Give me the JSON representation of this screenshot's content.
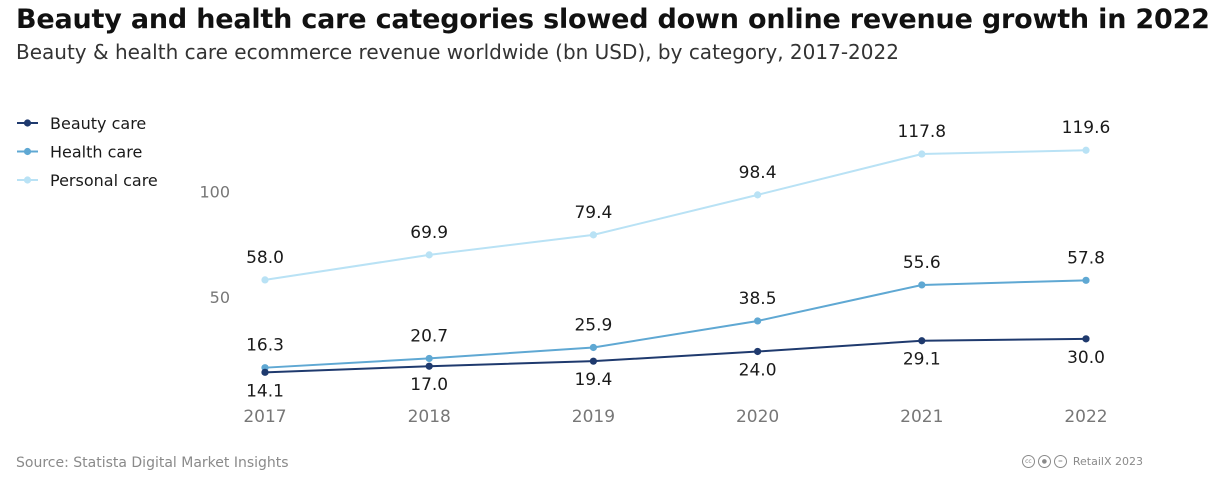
{
  "chart_data": {
    "type": "line",
    "title": "Beauty and health care categories slowed down online revenue growth in 2022",
    "subtitle": "Beauty & health care ecommerce revenue worldwide (bn USD), by category, 2017-2022",
    "x": [
      "2017",
      "2018",
      "2019",
      "2020",
      "2021",
      "2022"
    ],
    "series": [
      {
        "name": "Beauty care",
        "color": "#1f3a6e",
        "values": [
          14.1,
          17.0,
          19.4,
          24.0,
          29.1,
          30.0
        ],
        "labels": [
          "14.1",
          "17.0",
          "19.4",
          "24.0",
          "29.1",
          "30.0"
        ],
        "label_position": "below"
      },
      {
        "name": "Health care",
        "color": "#5fa8d3",
        "values": [
          16.3,
          20.7,
          25.9,
          38.5,
          55.6,
          57.8
        ],
        "labels": [
          "16.3",
          "20.7",
          "25.9",
          "38.5",
          "55.6",
          "57.8"
        ],
        "label_position": "above"
      },
      {
        "name": "Personal care",
        "color": "#b9e2f5",
        "values": [
          58.0,
          69.9,
          79.4,
          98.4,
          117.8,
          119.6
        ],
        "labels": [
          "58.0",
          "69.9",
          "79.4",
          "98.4",
          "117.8",
          "119.6"
        ],
        "label_position": "above"
      }
    ],
    "yticks": [
      50,
      100
    ],
    "ytick_labels": [
      "50",
      "100"
    ],
    "ylim": [
      0,
      125
    ],
    "grid": false,
    "legend_position": "top-left"
  },
  "footer": {
    "source": "Source: Statista Digital Market Insights",
    "credit": "RetailX 2023",
    "license_icons": [
      "cc",
      "by",
      "nd"
    ]
  }
}
